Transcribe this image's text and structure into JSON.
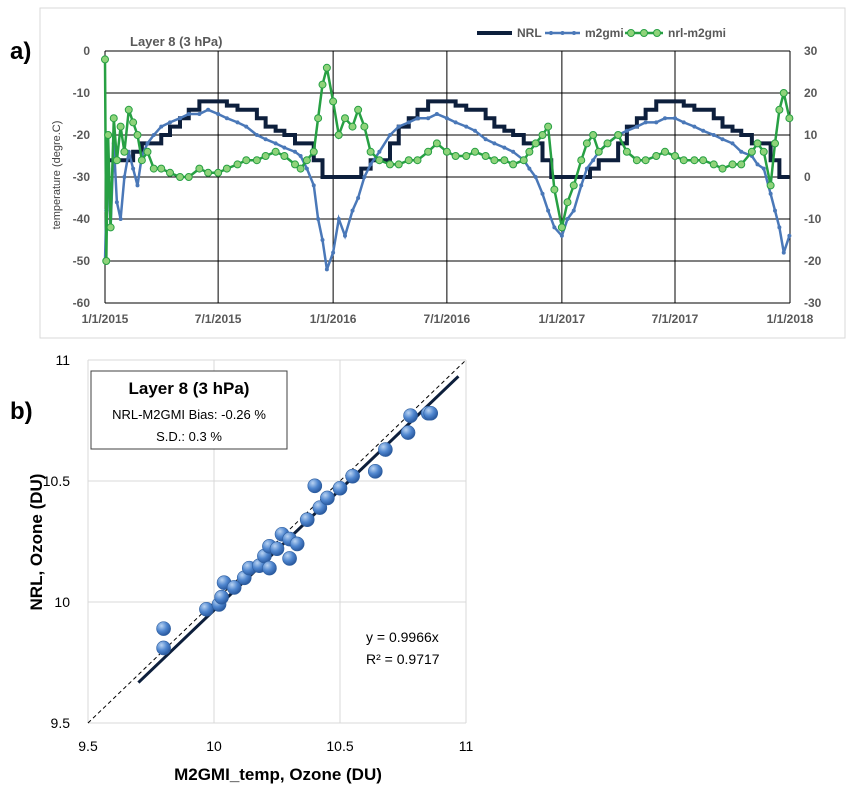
{
  "panel_labels": {
    "a": "a)",
    "b": "b)"
  },
  "chart_data": [
    {
      "type": "line",
      "title": "Layer 8 (3 hPa)",
      "ylabel": "temperature (degre.C)",
      "x_ticks": [
        "1/1/2015",
        "7/1/2015",
        "1/1/2016",
        "7/1/2016",
        "1/1/2017",
        "7/1/2017",
        "1/1/2018"
      ],
      "ylim_left": [
        -60,
        0
      ],
      "ylim_right": [
        -30,
        30
      ],
      "y_ticks_left": [
        "0",
        "-10",
        "-20",
        "-30",
        "-40",
        "-50",
        "-60"
      ],
      "y_ticks_right": [
        "30",
        "20",
        "10",
        "0",
        "-10",
        "-20",
        "-30"
      ],
      "grid": true,
      "legend_position": "top-right",
      "series": [
        {
          "name": "NRL",
          "color": "#0d1f3c",
          "axis": "left",
          "style": "step",
          "x": [
            "2015-01-01",
            "2015-02-15",
            "2015-03-01",
            "2015-04-01",
            "2015-04-15",
            "2015-05-01",
            "2015-05-15",
            "2015-06-01",
            "2015-07-01",
            "2015-07-15",
            "2015-08-01",
            "2015-09-01",
            "2015-09-15",
            "2015-10-01",
            "2015-10-15",
            "2015-11-01",
            "2015-12-01",
            "2015-12-15",
            "2016-01-15",
            "2016-02-15",
            "2016-03-01",
            "2016-04-01",
            "2016-04-15",
            "2016-05-01",
            "2016-05-15",
            "2016-06-01",
            "2016-07-01",
            "2016-07-15",
            "2016-08-01",
            "2016-09-01",
            "2016-09-15",
            "2016-10-01",
            "2016-10-15",
            "2016-11-01",
            "2016-12-01",
            "2016-12-15",
            "2017-01-15",
            "2017-02-15",
            "2017-03-01",
            "2017-04-01",
            "2017-04-15",
            "2017-05-01",
            "2017-05-15",
            "2017-06-01",
            "2017-07-01",
            "2017-07-15",
            "2017-08-01",
            "2017-09-01",
            "2017-09-15",
            "2017-10-01",
            "2017-10-15",
            "2017-11-01",
            "2017-12-01",
            "2017-12-15",
            "2017-12-31"
          ],
          "values": [
            -26,
            -24,
            -22,
            -20,
            -18,
            -16,
            -14,
            -12,
            -12,
            -13,
            -14,
            -16,
            -18,
            -19,
            -20,
            -22,
            -26,
            -30,
            -30,
            -28,
            -26,
            -22,
            -18,
            -16,
            -14,
            -12,
            -12,
            -13,
            -14,
            -16,
            -18,
            -19,
            -20,
            -22,
            -26,
            -30,
            -30,
            -28,
            -26,
            -22,
            -18,
            -16,
            -14,
            -12,
            -12,
            -13,
            -14,
            -16,
            -18,
            -19,
            -20,
            -22,
            -26,
            -30,
            -30
          ]
        },
        {
          "name": "m2gmi",
          "color": "#4a78b8",
          "axis": "left",
          "style": "line-markers",
          "x": [
            "2015-01-01",
            "2015-01-03",
            "2015-01-06",
            "2015-01-10",
            "2015-01-15",
            "2015-01-20",
            "2015-01-26",
            "2015-02-01",
            "2015-02-08",
            "2015-02-15",
            "2015-02-22",
            "2015-03-01",
            "2015-03-10",
            "2015-03-20",
            "2015-04-01",
            "2015-04-15",
            "2015-05-01",
            "2015-05-15",
            "2015-06-01",
            "2015-06-15",
            "2015-07-01",
            "2015-07-15",
            "2015-08-01",
            "2015-08-15",
            "2015-09-01",
            "2015-09-15",
            "2015-10-01",
            "2015-10-15",
            "2015-11-01",
            "2015-11-10",
            "2015-11-20",
            "2015-12-01",
            "2015-12-08",
            "2015-12-15",
            "2015-12-22",
            "2016-01-01",
            "2016-01-10",
            "2016-01-20",
            "2016-02-01",
            "2016-02-10",
            "2016-02-20",
            "2016-03-01",
            "2016-03-15",
            "2016-04-01",
            "2016-04-15",
            "2016-05-01",
            "2016-05-15",
            "2016-06-01",
            "2016-06-15",
            "2016-07-01",
            "2016-07-15",
            "2016-08-01",
            "2016-08-15",
            "2016-09-01",
            "2016-09-15",
            "2016-10-01",
            "2016-10-15",
            "2016-11-01",
            "2016-11-10",
            "2016-11-20",
            "2016-12-01",
            "2016-12-10",
            "2016-12-20",
            "2017-01-01",
            "2017-01-10",
            "2017-01-20",
            "2017-02-01",
            "2017-02-10",
            "2017-02-20",
            "2017-03-01",
            "2017-03-15",
            "2017-04-01",
            "2017-04-15",
            "2017-05-01",
            "2017-05-15",
            "2017-06-01",
            "2017-06-15",
            "2017-07-01",
            "2017-07-15",
            "2017-08-01",
            "2017-08-15",
            "2017-09-01",
            "2017-09-15",
            "2017-10-01",
            "2017-10-15",
            "2017-11-01",
            "2017-11-10",
            "2017-11-20",
            "2017-12-01",
            "2017-12-08",
            "2017-12-15",
            "2017-12-22",
            "2017-12-31"
          ],
          "values": [
            -50,
            -38,
            -28,
            -42,
            -22,
            -36,
            -40,
            -30,
            -24,
            -28,
            -32,
            -25,
            -22,
            -20,
            -18,
            -17,
            -16,
            -15,
            -15,
            -14,
            -15,
            -16,
            -17,
            -18,
            -20,
            -21,
            -22,
            -23,
            -24,
            -25,
            -28,
            -32,
            -40,
            -45,
            -52,
            -48,
            -40,
            -44,
            -38,
            -35,
            -30,
            -27,
            -24,
            -20,
            -18,
            -17,
            -16,
            -16,
            -15,
            -16,
            -17,
            -18,
            -19,
            -21,
            -22,
            -23,
            -24,
            -26,
            -28,
            -30,
            -34,
            -38,
            -42,
            -44,
            -40,
            -38,
            -32,
            -28,
            -26,
            -24,
            -22,
            -20,
            -19,
            -18,
            -17,
            -17,
            -16,
            -16,
            -17,
            -18,
            -19,
            -20,
            -21,
            -22,
            -24,
            -25,
            -27,
            -28,
            -34,
            -38,
            -42,
            -48,
            -44
          ]
        },
        {
          "name": "nrl-m2gmi",
          "color": "#27a043",
          "marker_fill": "#8fd37a",
          "axis": "right",
          "style": "line-markers",
          "x": [
            "2015-01-01",
            "2015-01-03",
            "2015-01-06",
            "2015-01-10",
            "2015-01-15",
            "2015-01-20",
            "2015-01-26",
            "2015-02-01",
            "2015-02-08",
            "2015-02-15",
            "2015-02-22",
            "2015-03-01",
            "2015-03-10",
            "2015-03-20",
            "2015-04-01",
            "2015-04-15",
            "2015-05-01",
            "2015-05-15",
            "2015-06-01",
            "2015-06-15",
            "2015-07-01",
            "2015-07-15",
            "2015-08-01",
            "2015-08-15",
            "2015-09-01",
            "2015-09-15",
            "2015-10-01",
            "2015-10-15",
            "2015-11-01",
            "2015-11-10",
            "2015-11-20",
            "2015-12-01",
            "2015-12-08",
            "2015-12-15",
            "2015-12-22",
            "2016-01-01",
            "2016-01-10",
            "2016-01-20",
            "2016-02-01",
            "2016-02-10",
            "2016-02-20",
            "2016-03-01",
            "2016-03-15",
            "2016-04-01",
            "2016-04-15",
            "2016-05-01",
            "2016-05-15",
            "2016-06-01",
            "2016-06-15",
            "2016-07-01",
            "2016-07-15",
            "2016-08-01",
            "2016-08-15",
            "2016-09-01",
            "2016-09-15",
            "2016-10-01",
            "2016-10-15",
            "2016-11-01",
            "2016-11-10",
            "2016-11-20",
            "2016-12-01",
            "2016-12-10",
            "2016-12-20",
            "2017-01-01",
            "2017-01-10",
            "2017-01-20",
            "2017-02-01",
            "2017-02-10",
            "2017-02-20",
            "2017-03-01",
            "2017-03-15",
            "2017-04-01",
            "2017-04-15",
            "2017-05-01",
            "2017-05-15",
            "2017-06-01",
            "2017-06-15",
            "2017-07-01",
            "2017-07-15",
            "2017-08-01",
            "2017-08-15",
            "2017-09-01",
            "2017-09-15",
            "2017-10-01",
            "2017-10-15",
            "2017-11-01",
            "2017-11-10",
            "2017-11-20",
            "2017-12-01",
            "2017-12-08",
            "2017-12-15",
            "2017-12-22",
            "2017-12-31"
          ],
          "values": [
            28,
            -20,
            10,
            -12,
            14,
            4,
            12,
            6,
            16,
            13,
            10,
            4,
            6,
            2,
            2,
            1,
            0,
            0,
            2,
            1,
            1,
            2,
            3,
            4,
            4,
            5,
            6,
            5,
            3,
            2,
            4,
            6,
            14,
            22,
            26,
            18,
            10,
            14,
            12,
            16,
            12,
            6,
            4,
            3,
            3,
            4,
            4,
            6,
            8,
            6,
            5,
            5,
            6,
            5,
            4,
            4,
            3,
            4,
            6,
            8,
            10,
            12,
            -3,
            -12,
            -6,
            -2,
            4,
            8,
            10,
            6,
            8,
            10,
            6,
            4,
            4,
            5,
            6,
            5,
            4,
            4,
            4,
            3,
            2,
            3,
            3,
            6,
            8,
            6,
            -2,
            8,
            16,
            20,
            14
          ]
        }
      ]
    },
    {
      "type": "scatter",
      "title": "Layer 8 (3 hPa)",
      "annotations": [
        "NRL-M2GMI Bias: -0.26 %",
        "S.D.: 0.3 %"
      ],
      "equation": "y = 0.9966x",
      "r_squared": "R² = 0.9717",
      "xlabel": "M2GMI_temp, Ozone (DU)",
      "ylabel": "NRL, Ozone (DU)",
      "xlim": [
        9.5,
        11
      ],
      "ylim": [
        9.5,
        11
      ],
      "x_ticks": [
        "9.5",
        "10",
        "10.5",
        "11"
      ],
      "y_ticks": [
        "9.5",
        "10",
        "10.5",
        "11"
      ],
      "grid": true,
      "fit_slope": 0.9966,
      "fit_x_range": [
        9.7,
        10.97
      ],
      "one_to_one_line": true,
      "points": [
        {
          "x": 9.8,
          "y": 9.89
        },
        {
          "x": 9.8,
          "y": 9.81
        },
        {
          "x": 9.97,
          "y": 9.97
        },
        {
          "x": 10.02,
          "y": 9.99
        },
        {
          "x": 10.03,
          "y": 10.02
        },
        {
          "x": 10.04,
          "y": 10.08
        },
        {
          "x": 10.08,
          "y": 10.06
        },
        {
          "x": 10.12,
          "y": 10.1
        },
        {
          "x": 10.14,
          "y": 10.14
        },
        {
          "x": 10.18,
          "y": 10.15
        },
        {
          "x": 10.2,
          "y": 10.19
        },
        {
          "x": 10.22,
          "y": 10.14
        },
        {
          "x": 10.22,
          "y": 10.23
        },
        {
          "x": 10.25,
          "y": 10.22
        },
        {
          "x": 10.27,
          "y": 10.28
        },
        {
          "x": 10.3,
          "y": 10.18
        },
        {
          "x": 10.3,
          "y": 10.26
        },
        {
          "x": 10.33,
          "y": 10.24
        },
        {
          "x": 10.37,
          "y": 10.34
        },
        {
          "x": 10.4,
          "y": 10.48
        },
        {
          "x": 10.42,
          "y": 10.39
        },
        {
          "x": 10.45,
          "y": 10.43
        },
        {
          "x": 10.5,
          "y": 10.47
        },
        {
          "x": 10.55,
          "y": 10.52
        },
        {
          "x": 10.64,
          "y": 10.54
        },
        {
          "x": 10.68,
          "y": 10.63
        },
        {
          "x": 10.77,
          "y": 10.7
        },
        {
          "x": 10.78,
          "y": 10.77
        },
        {
          "x": 10.85,
          "y": 10.78
        },
        {
          "x": 10.86,
          "y": 10.78
        }
      ]
    }
  ]
}
